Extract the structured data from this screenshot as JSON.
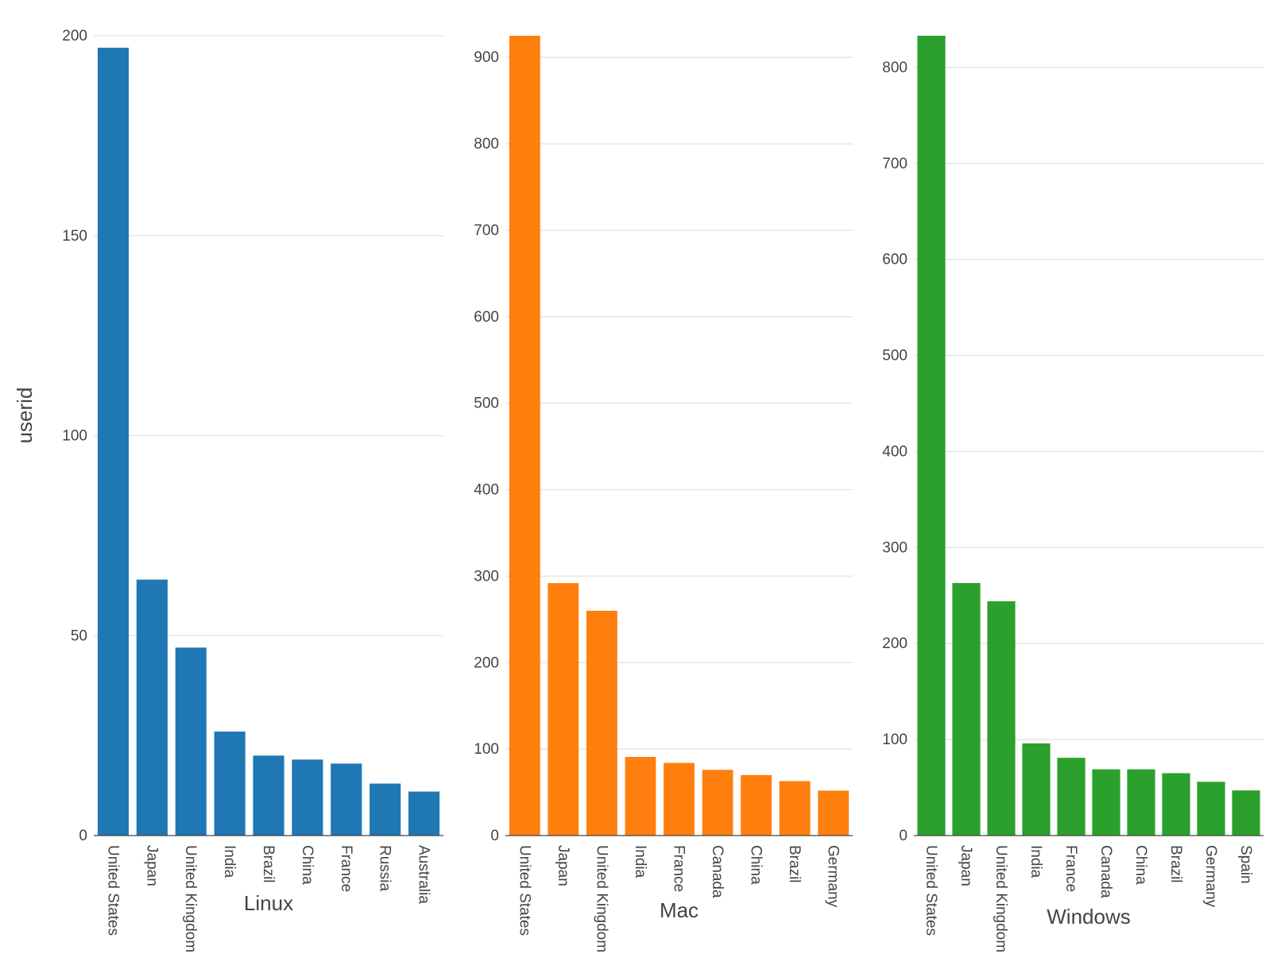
{
  "chart_data": [
    {
      "type": "bar",
      "xlabel": "Linux",
      "ylabel": "userid",
      "color": "#1f77b4",
      "ylim": [
        0,
        200
      ],
      "yticks": [
        0,
        50,
        100,
        150,
        200
      ],
      "categories": [
        "United States",
        "Japan",
        "United Kingdom",
        "India",
        "Brazil",
        "China",
        "France",
        "Russia",
        "Australia"
      ],
      "values": [
        197,
        64,
        47,
        26,
        20,
        19,
        18,
        13,
        11
      ]
    },
    {
      "type": "bar",
      "xlabel": "Mac",
      "color": "#ff7f0e",
      "ylim": [
        0,
        925
      ],
      "yticks": [
        0,
        100,
        200,
        300,
        400,
        500,
        600,
        700,
        800,
        900
      ],
      "categories": [
        "United States",
        "Japan",
        "United Kingdom",
        "India",
        "France",
        "Canada",
        "China",
        "Brazil",
        "Germany"
      ],
      "values": [
        925,
        292,
        260,
        91,
        84,
        76,
        70,
        63,
        52
      ]
    },
    {
      "type": "bar",
      "xlabel": "Windows",
      "color": "#2ca02c",
      "ylim": [
        0,
        833
      ],
      "yticks": [
        0,
        100,
        200,
        300,
        400,
        500,
        600,
        700,
        800
      ],
      "categories": [
        "United States",
        "Japan",
        "United Kingdom",
        "India",
        "France",
        "Canada",
        "China",
        "Brazil",
        "Germany",
        "Spain"
      ],
      "values": [
        833,
        263,
        244,
        96,
        81,
        69,
        69,
        65,
        56,
        47
      ]
    }
  ]
}
